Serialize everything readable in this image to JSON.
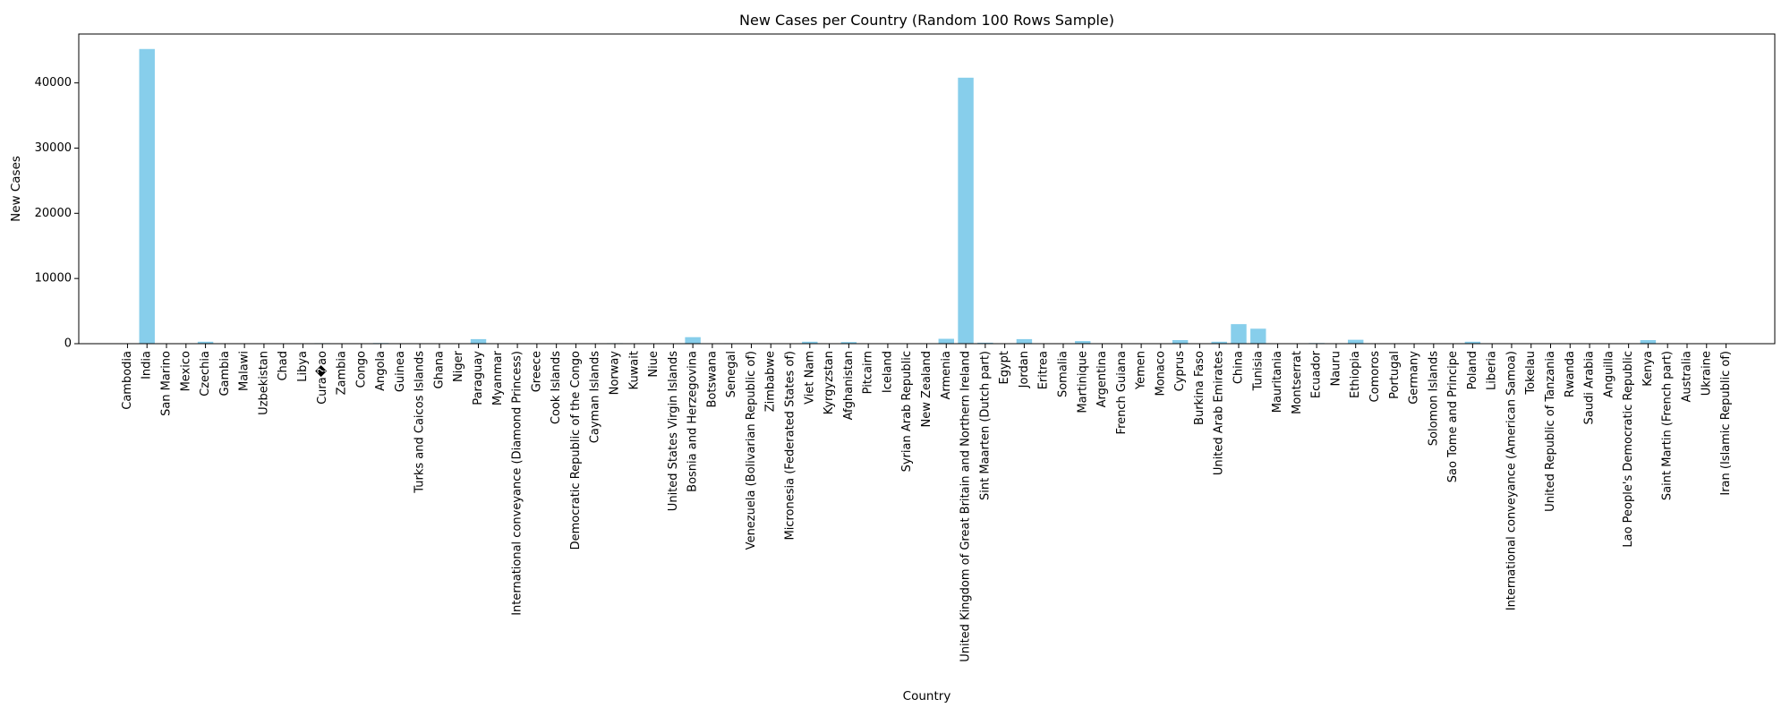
{
  "chart_data": {
    "type": "bar",
    "title": "New Cases per Country (Random 100 Rows Sample)",
    "xlabel": "Country",
    "ylabel": "New Cases",
    "ylim": [
      0,
      47500
    ],
    "yticks": [
      0,
      10000,
      20000,
      30000,
      40000
    ],
    "grid": false,
    "bar_color": "#87ceeb",
    "categories": [
      "Cambodia",
      "India",
      "San Marino",
      "Mexico",
      "Czechia",
      "Gambia",
      "Malawi",
      "Uzbekistan",
      "Chad",
      "Libya",
      "Cura�ao",
      "Zambia",
      "Congo",
      "Angola",
      "Guinea",
      "Turks and Caicos Islands",
      "Ghana",
      "Niger",
      "Paraguay",
      "Myanmar",
      "International conveyance (Diamond Princess)",
      "Greece",
      "Cook Islands",
      "Democratic Republic of the Congo",
      "Cayman Islands",
      "Norway",
      "Kuwait",
      "Niue",
      "United States Virgin Islands",
      "Bosnia and Herzegovina",
      "Botswana",
      "Senegal",
      "Venezuela (Bolivarian Republic of)",
      "Zimbabwe",
      "Micronesia (Federated States of)",
      "Viet Nam",
      "Kyrgyzstan",
      "Afghanistan",
      "Pitcairn",
      "Iceland",
      "Syrian Arab Republic",
      "New Zealand",
      "Armenia",
      "United Kingdom of Great Britain and Northern Ireland",
      "Sint Maarten (Dutch part)",
      "Egypt",
      "Jordan",
      "Eritrea",
      "Somalia",
      "Martinique",
      "Argentina",
      "French Guiana",
      "Yemen",
      "Monaco",
      "Cyprus",
      "Burkina Faso",
      "United Arab Emirates",
      "China",
      "Tunisia",
      "Mauritania",
      "Montserrat",
      "Ecuador",
      "Nauru",
      "Ethiopia",
      "Comoros",
      "Portugal",
      "Germany",
      "Solomon Islands",
      "Sao Tome and Principe",
      "Poland",
      "Liberia",
      "International conveyance (American Samoa)",
      "Tokelau",
      "United Republic of Tanzania",
      "Rwanda",
      "Saudi Arabia",
      "Anguilla",
      "Lao People's Democratic Republic",
      "Kenya",
      "Saint Martin (French part)",
      "Australia",
      "Ukraine",
      "Iran (Islamic Republic of)"
    ],
    "values": [
      0,
      45200,
      0,
      0,
      300,
      0,
      0,
      0,
      0,
      0,
      80,
      0,
      0,
      100,
      0,
      0,
      60,
      0,
      700,
      0,
      0,
      0,
      0,
      0,
      0,
      80,
      0,
      0,
      0,
      1000,
      0,
      70,
      0,
      0,
      0,
      300,
      0,
      250,
      0,
      0,
      0,
      50,
      750,
      40800,
      150,
      0,
      700,
      0,
      0,
      400,
      0,
      0,
      0,
      0,
      550,
      0,
      300,
      3000,
      2300,
      0,
      0,
      100,
      0,
      600,
      0,
      0,
      0,
      0,
      0,
      300,
      0,
      0,
      0,
      0,
      0,
      0,
      0,
      0,
      550,
      0,
      0,
      0,
      0
    ]
  }
}
